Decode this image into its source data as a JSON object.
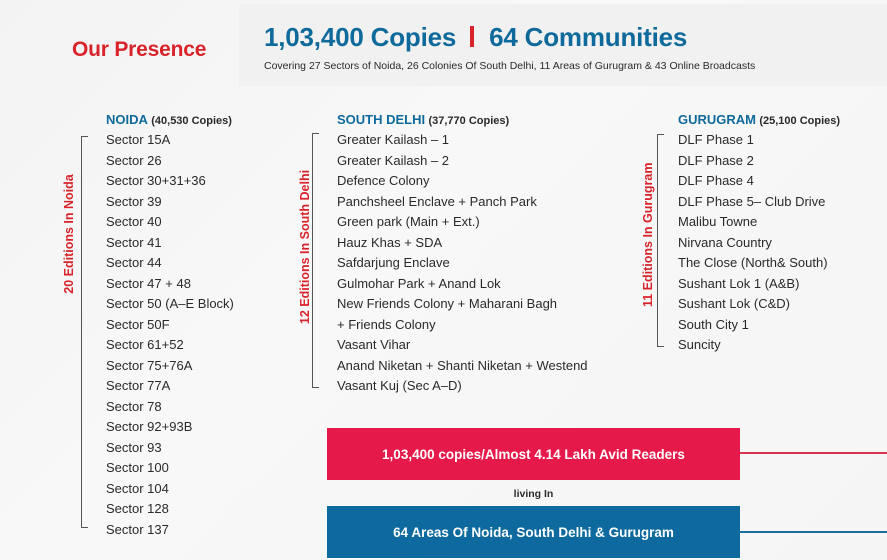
{
  "header": {
    "section_title": "Our Presence",
    "copies_headline": "1,03,400 Copies",
    "communities_headline": "64 Communities",
    "subline": "Covering 27 Sectors of Noida, 26 Colonies Of South Delhi, 11 Areas of Gurugram & 43 Online Broadcasts"
  },
  "noida": {
    "region": "NOIDA",
    "copies": "(40,530 Copies)",
    "editions_label": "20 Editions In Noida",
    "items": [
      "Sector 15A",
      "Sector 26",
      "Sector 30+31+36",
      "Sector 39",
      "Sector 40",
      "Sector 41",
      "Sector 44",
      "Sector 47 + 48",
      "Sector 50 (A–E Block)",
      "Sector 50F",
      "Sector 61+52",
      "Sector 75+76A",
      "Sector 77A",
      "Sector 78",
      "Sector 92+93B",
      "Sector 93",
      "Sector 100",
      "Sector 104",
      "Sector 128",
      "Sector 137"
    ]
  },
  "south_delhi": {
    "region": "SOUTH DELHI",
    "copies": "(37,770 Copies)",
    "editions_label": "12 Editions In South Delhi",
    "items": [
      "Greater Kailash – 1",
      "Greater Kailash – 2",
      "Defence Colony",
      "Panchsheel Enclave + Panch Park",
      "Green park (Main + Ext.)",
      "Hauz Khas + SDA",
      "Safdarjung Enclave",
      "Gulmohar Park + Anand Lok",
      "New Friends Colony + Maharani Bagh",
      "+ Friends Colony",
      "Vasant Vihar",
      "Anand Niketan + Shanti Niketan + Westend",
      "Vasant Kuj (Sec A–D)"
    ]
  },
  "gurugram": {
    "region": "GURUGRAM",
    "copies": "(25,100 Copies)",
    "editions_label": "11 Editions In Gurugram",
    "items": [
      "DLF Phase 1",
      "DLF Phase 2",
      "DLF Phase 4",
      "DLF Phase 5– Club Drive",
      "Malibu Towne",
      "Nirvana Country",
      "The Close (North& South)",
      "Sushant Lok 1 (A&B)",
      "Sushant Lok (C&D)",
      "South City 1",
      "Suncity"
    ]
  },
  "summary": {
    "readers": "1,03,400 copies/Almost 4.14 Lakh Avid Readers",
    "connector": "living In",
    "areas": "64 Areas Of Noida, South Delhi & Gurugram"
  },
  "colors": {
    "brand_red": "#d8232a",
    "brand_blue": "#0f6a9c",
    "readers_bar": "#e5194a",
    "areas_bar": "#0e6a9e"
  }
}
